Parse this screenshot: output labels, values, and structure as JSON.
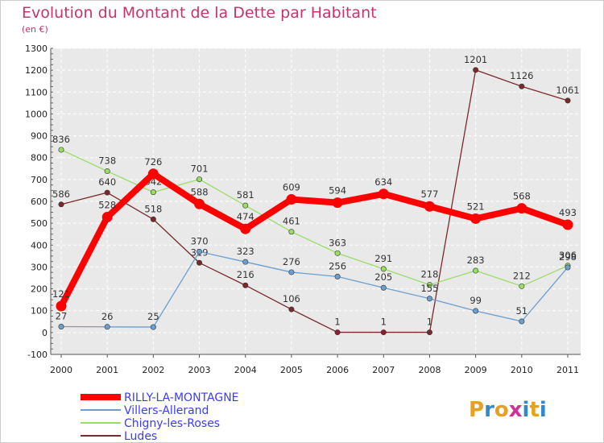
{
  "chart_data": {
    "type": "line",
    "title": "Evolution du Montant de la Dette par Habitant",
    "subtitle": "(en €)",
    "xlabel": "",
    "ylabel": "",
    "x": [
      "2000",
      "2001",
      "2002",
      "2003",
      "2004",
      "2005",
      "2006",
      "2007",
      "2008",
      "2009",
      "2010",
      "2011"
    ],
    "ylim": [
      -100,
      1300
    ],
    "yticks": [
      "-100",
      "0",
      "100",
      "200",
      "300",
      "400",
      "500",
      "600",
      "700",
      "800",
      "900",
      "1000",
      "1100",
      "1200",
      "1300"
    ],
    "grid": true,
    "legend_position": "bottom-left",
    "series": [
      {
        "name": "Ludes",
        "color": "#7a2a2a",
        "values": [
          586,
          640,
          518,
          319,
          216,
          106,
          1,
          1,
          1,
          1201,
          1126,
          1061
        ],
        "labels": [
          "586",
          "640",
          "518",
          "319",
          "216",
          "106",
          "1",
          "1",
          "1",
          "1201",
          "1126",
          "1061"
        ]
      },
      {
        "name": "Chigny-les-Roses",
        "color": "#99dd66",
        "values": [
          836,
          738,
          642,
          701,
          581,
          461,
          363,
          291,
          218,
          283,
          212,
          306
        ],
        "labels": [
          "836",
          "738",
          "642",
          "701",
          "581",
          "461",
          "363",
          "291",
          "218",
          "283",
          "212",
          "306"
        ]
      },
      {
        "name": "Villers-Allerand",
        "color": "#6a9fd0",
        "values": [
          27,
          26,
          25,
          370,
          323,
          276,
          256,
          205,
          155,
          99,
          51,
          298
        ],
        "labels": [
          "27",
          "26",
          "25",
          "370",
          "323",
          "276",
          "256",
          "205",
          "155",
          "99",
          "51",
          "298"
        ]
      },
      {
        "name": "RILLY-LA-MONTAGNE",
        "color": "#ff0000",
        "values": [
          121,
          528,
          726,
          588,
          474,
          609,
          594,
          634,
          577,
          521,
          568,
          493
        ],
        "labels": [
          "121",
          "528",
          "726",
          "588",
          "474",
          "609",
          "594",
          "634",
          "577",
          "521",
          "568",
          "493"
        ]
      }
    ],
    "legend_order": [
      "RILLY-LA-MONTAGNE",
      "Villers-Allerand",
      "Chigny-les-Roses",
      "Ludes"
    ]
  },
  "logo": {
    "text": "Proxiti"
  }
}
